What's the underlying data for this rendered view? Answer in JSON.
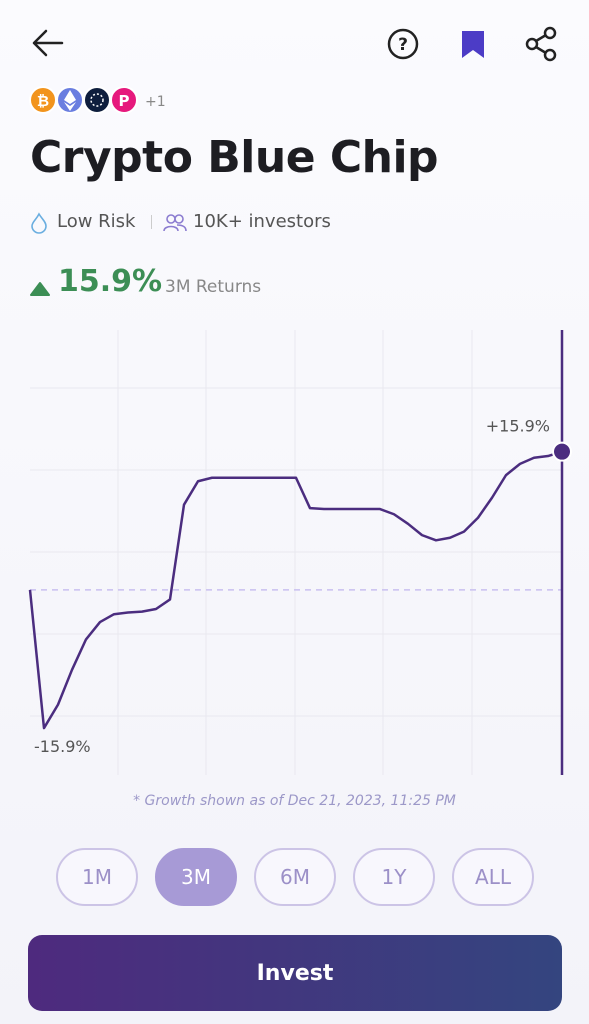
{
  "header": {
    "coins_more": "+1",
    "title": "Crypto Blue Chip",
    "risk": "Low Risk",
    "investors": "10K+ investors"
  },
  "returns": {
    "value": "15.9%",
    "period": "3M Returns"
  },
  "chart_data": {
    "type": "line",
    "color": "#4b2d7f",
    "values": [
      0,
      -15.9,
      -13.2,
      -9.2,
      -5.7,
      -3.7,
      -2.8,
      -2.6,
      -2.5,
      -2.2,
      -1.1,
      9.8,
      12.5,
      12.9,
      12.9,
      12.9,
      12.9,
      12.9,
      12.9,
      12.9,
      9.4,
      9.3,
      9.3,
      9.3,
      9.3,
      9.3,
      8.7,
      7.6,
      6.3,
      5.7,
      6.0,
      6.7,
      8.3,
      10.6,
      13.2,
      14.5,
      15.2,
      15.4,
      15.9
    ],
    "ylim": [
      -21.3,
      29.9
    ],
    "baseline": 0,
    "annotations": [
      "+15.9%",
      "-15.9%"
    ]
  },
  "footnote": "* Growth shown as of Dec 21, 2023, 11:25 PM",
  "ranges": {
    "options": [
      "1M",
      "3M",
      "6M",
      "1Y",
      "ALL"
    ],
    "selected": 1
  },
  "cta": "Invest"
}
